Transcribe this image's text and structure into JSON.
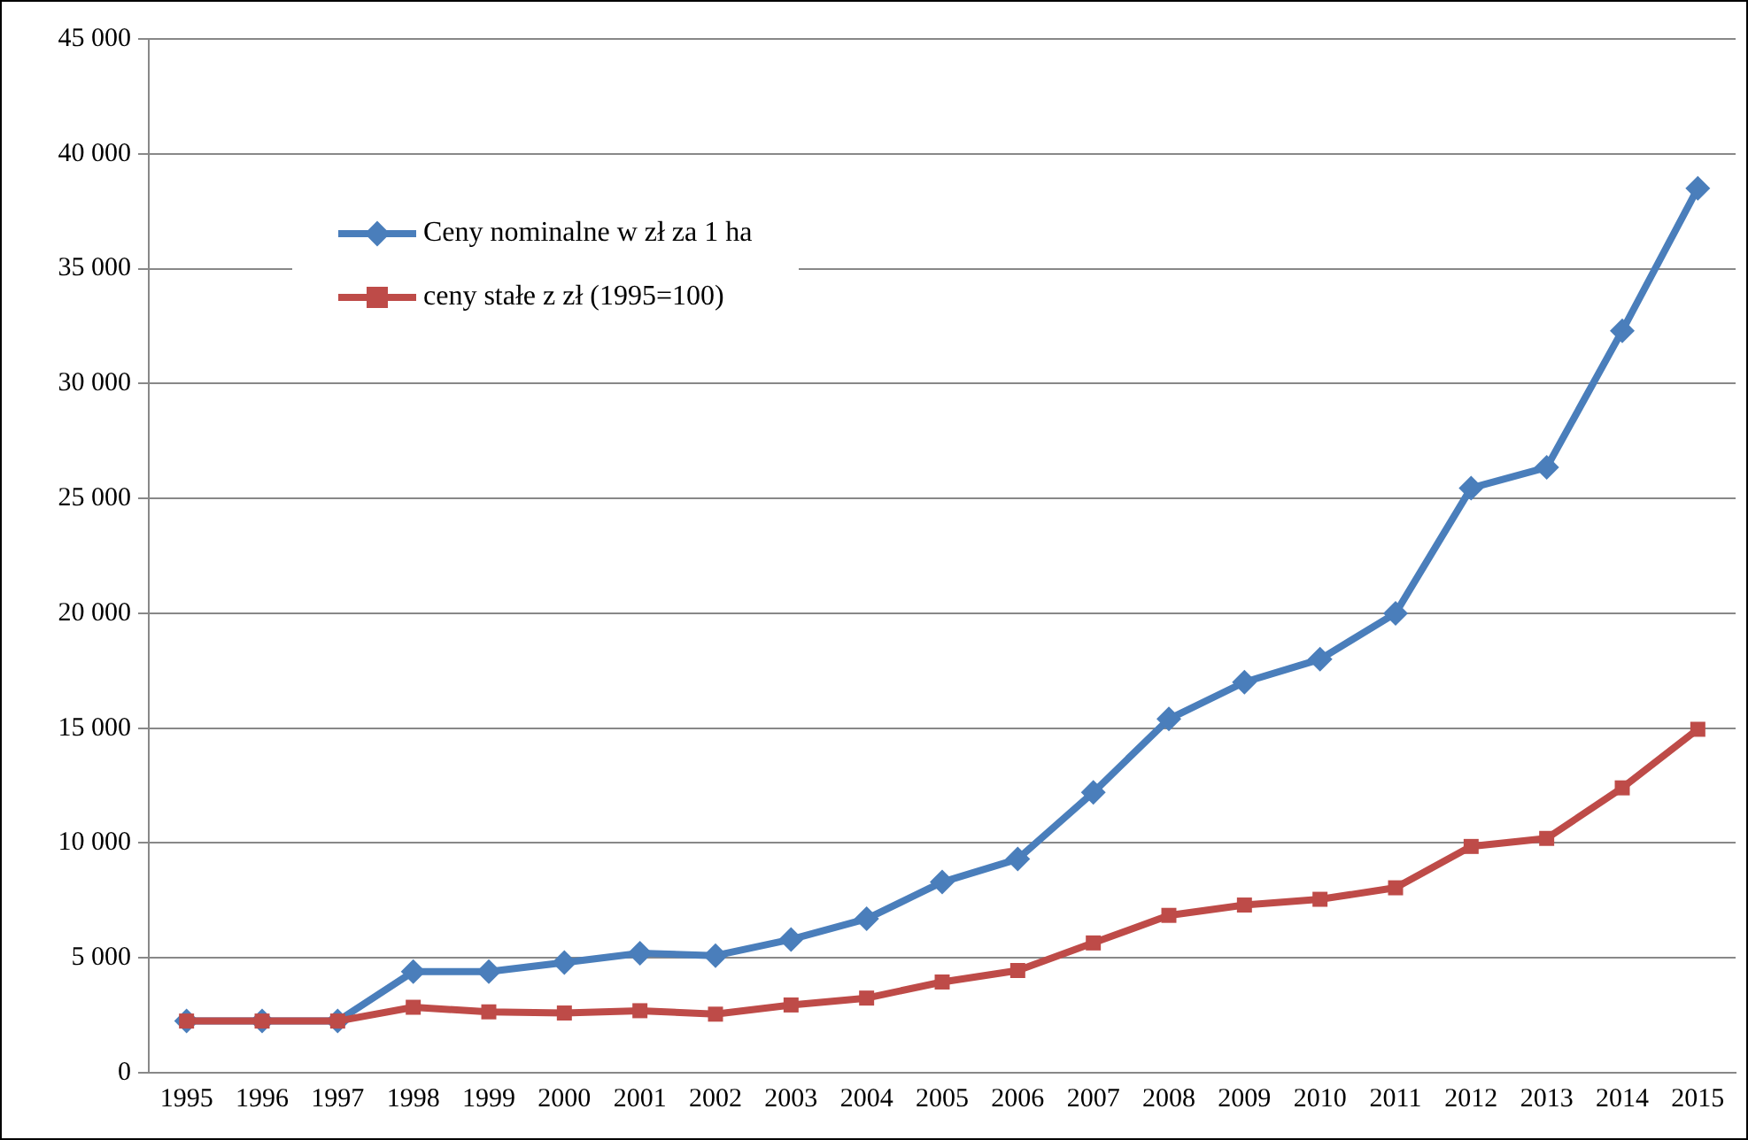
{
  "chart_data": {
    "type": "line",
    "categories": [
      "1995",
      "1996",
      "1997",
      "1998",
      "1999",
      "2000",
      "2001",
      "2002",
      "2003",
      "2004",
      "2005",
      "2006",
      "2007",
      "2008",
      "2009",
      "2010",
      "2011",
      "2012",
      "2013",
      "2014",
      "2015"
    ],
    "series": [
      {
        "name": "Ceny nominalne w zł za 1 ha",
        "color": "#4a7ebb",
        "marker": "diamond",
        "values": [
          2250,
          2250,
          2250,
          4400,
          4400,
          4800,
          5200,
          5100,
          5800,
          6700,
          8300,
          9300,
          12200,
          15400,
          17000,
          18000,
          20000,
          25450,
          26350,
          32300,
          38500
        ]
      },
      {
        "name": "ceny stałe z zł (1995=100)",
        "color": "#be4b48",
        "marker": "square",
        "values": [
          2250,
          2250,
          2250,
          2850,
          2650,
          2600,
          2700,
          2550,
          2950,
          3250,
          3950,
          4450,
          5650,
          6850,
          7300,
          7550,
          8050,
          9850,
          10200,
          12400,
          14950
        ]
      }
    ],
    "ylim": [
      0,
      45000
    ],
    "yticks": [
      {
        "value": 0,
        "label": "0"
      },
      {
        "value": 5000,
        "label": "5 000"
      },
      {
        "value": 10000,
        "label": "10 000"
      },
      {
        "value": 15000,
        "label": "15 000"
      },
      {
        "value": 20000,
        "label": "20 000"
      },
      {
        "value": 25000,
        "label": "25 000"
      },
      {
        "value": 30000,
        "label": "30 000"
      },
      {
        "value": 35000,
        "label": "35 000"
      },
      {
        "value": 40000,
        "label": "40 000"
      },
      {
        "value": 45000,
        "label": "45 000"
      }
    ],
    "grid": "y",
    "legend": "top left",
    "line_style": "solid"
  }
}
